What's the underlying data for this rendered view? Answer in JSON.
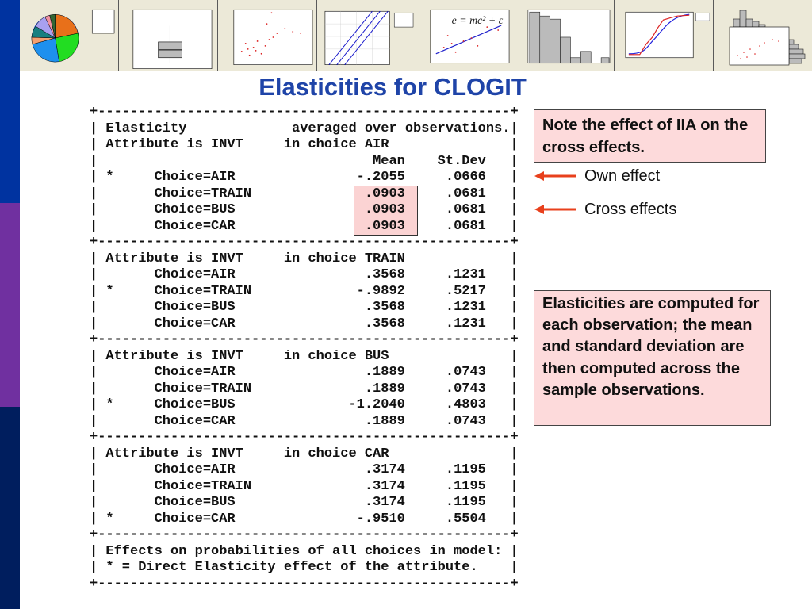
{
  "slide": {
    "title": "Elasticities for CLOGIT",
    "stripe_colors": [
      "#0033a0",
      "#7030a0",
      "#001e5e"
    ],
    "accent_color": "#1f44a8",
    "arrow_color": "#e8401c",
    "note_fill": "#fddadb"
  },
  "banner": {
    "thumbnails": [
      "pie-chart",
      "boxplot",
      "scatterplot",
      "probability-plot",
      "scatterplot-with-fit-line",
      "histogram",
      "empirical-cdf",
      "marginal-plot"
    ],
    "equation": "e = mc² + ε"
  },
  "table": {
    "border": "+---------------------------------------------------+",
    "pipe": "|",
    "header": {
      "label": "Elasticity",
      "note": "averaged over observations.",
      "col_mean": "Mean",
      "col_stdev": "St.Dev"
    },
    "sections": [
      {
        "attribute": "Attribute is INVT",
        "choice": "in choice AIR",
        "rows": [
          {
            "star": "*",
            "choice": "Choice=AIR",
            "mean": "-.2055",
            "stdev": ".0666",
            "highlighted": false
          },
          {
            "star": "",
            "choice": "Choice=TRAIN",
            "mean": ".0903",
            "stdev": ".0681",
            "highlighted": true
          },
          {
            "star": "",
            "choice": "Choice=BUS",
            "mean": ".0903",
            "stdev": ".0681",
            "highlighted": true
          },
          {
            "star": "",
            "choice": "Choice=CAR",
            "mean": ".0903",
            "stdev": ".0681",
            "highlighted": true
          }
        ]
      },
      {
        "attribute": "Attribute is INVT",
        "choice": "in choice TRAIN",
        "rows": [
          {
            "star": "",
            "choice": "Choice=AIR",
            "mean": ".3568",
            "stdev": ".1231"
          },
          {
            "star": "*",
            "choice": "Choice=TRAIN",
            "mean": "-.9892",
            "stdev": ".5217"
          },
          {
            "star": "",
            "choice": "Choice=BUS",
            "mean": ".3568",
            "stdev": ".1231"
          },
          {
            "star": "",
            "choice": "Choice=CAR",
            "mean": ".3568",
            "stdev": ".1231"
          }
        ]
      },
      {
        "attribute": "Attribute is INVT",
        "choice": "in choice BUS",
        "rows": [
          {
            "star": "",
            "choice": "Choice=AIR",
            "mean": ".1889",
            "stdev": ".0743"
          },
          {
            "star": "",
            "choice": "Choice=TRAIN",
            "mean": ".1889",
            "stdev": ".0743"
          },
          {
            "star": "*",
            "choice": "Choice=BUS",
            "mean": "-1.2040",
            "stdev": ".4803"
          },
          {
            "star": "",
            "choice": "Choice=CAR",
            "mean": ".1889",
            "stdev": ".0743"
          }
        ]
      },
      {
        "attribute": "Attribute is INVT",
        "choice": "in choice CAR",
        "rows": [
          {
            "star": "",
            "choice": "Choice=AIR",
            "mean": ".3174",
            "stdev": ".1195"
          },
          {
            "star": "",
            "choice": "Choice=TRAIN",
            "mean": ".3174",
            "stdev": ".1195"
          },
          {
            "star": "",
            "choice": "Choice=BUS",
            "mean": ".3174",
            "stdev": ".1195"
          },
          {
            "star": "*",
            "choice": "Choice=CAR",
            "mean": "-.9510",
            "stdev": ".5504"
          }
        ]
      }
    ],
    "footer": [
      "Effects on probabilities of all choices in model:",
      "* = Direct Elasticity effect of the attribute."
    ]
  },
  "callouts": {
    "note_iia": "Note the effect of IIA on the cross effects.",
    "own_effect": "Own effect",
    "cross_effects": "Cross effects",
    "note_computation": "Elasticities are computed for each observation; the mean and standard deviation are then computed across the sample observations."
  }
}
